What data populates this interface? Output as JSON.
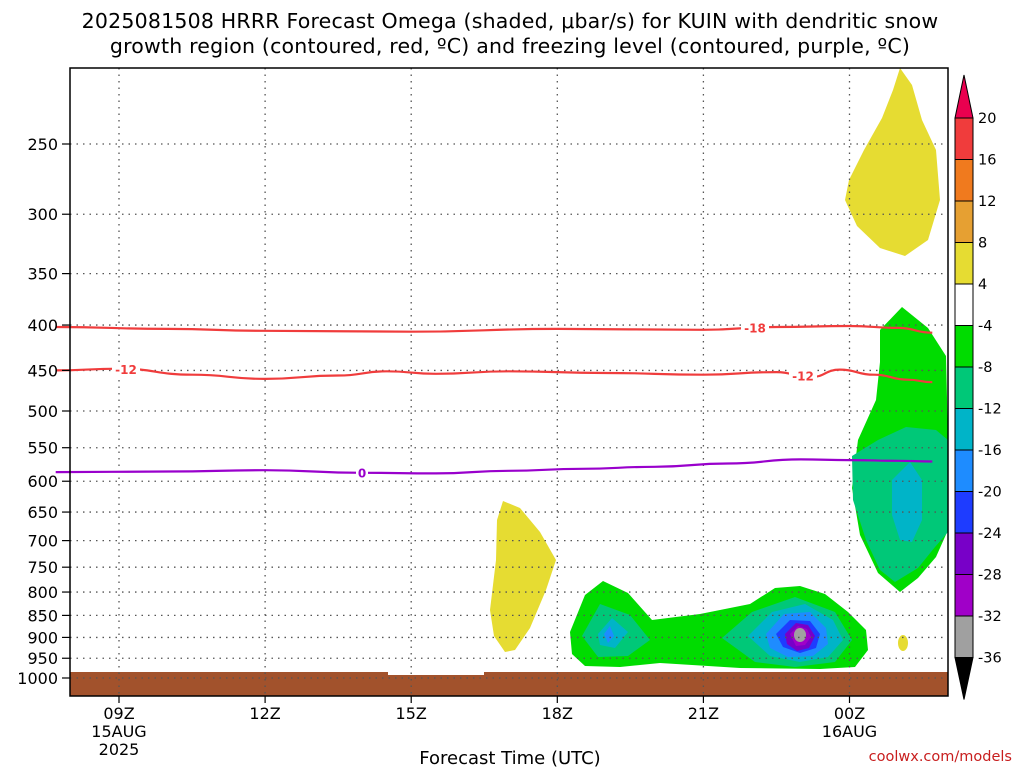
{
  "title": {
    "line1": "2025081508 HRRR Forecast Omega (shaded, μbar/s) for KUIN with dendritic snow",
    "line2": "growth region (contoured, red, ºC) and freezing level (contoured, purple, ºC)"
  },
  "credit": "coolwx.com/models",
  "chart_data": {
    "type": "time-height cross section",
    "xlabel": "Forecast Time (UTC)",
    "x_range_hours": [
      7.7,
      25.7
    ],
    "x_ticks": [
      {
        "hour": 9,
        "label": "09Z",
        "sub1": "15AUG",
        "sub2": "2025"
      },
      {
        "hour": 12,
        "label": "12Z",
        "sub1": "",
        "sub2": ""
      },
      {
        "hour": 15,
        "label": "15Z",
        "sub1": "",
        "sub2": ""
      },
      {
        "hour": 18,
        "label": "18Z",
        "sub1": "",
        "sub2": ""
      },
      {
        "hour": 21,
        "label": "21Z",
        "sub1": "",
        "sub2": ""
      },
      {
        "hour": 24,
        "label": "00Z",
        "sub1": "16AUG",
        "sub2": ""
      }
    ],
    "y_scale": "log pressure (mb), inverted",
    "y_range_mb": [
      1030,
      200
    ],
    "y_ticks": [
      250,
      300,
      350,
      400,
      450,
      500,
      550,
      600,
      650,
      700,
      750,
      800,
      850,
      900,
      950,
      1000
    ],
    "grid": true,
    "colorbar": {
      "levels": [
        20,
        16,
        12,
        8,
        4,
        -4,
        -8,
        -12,
        -16,
        -20,
        -24,
        -28,
        -32,
        -36
      ],
      "colors": [
        "#e9004f",
        "#f03c3c",
        "#f07a1e",
        "#e6a032",
        "#e6dc32",
        "#ffffff",
        "#00dc00",
        "#00c878",
        "#00b4c8",
        "#1e8cff",
        "#1e3cff",
        "#7800c8",
        "#a000c8",
        "#a0a0a0",
        "#000000"
      ]
    },
    "contours": [
      {
        "label": "-18",
        "color": "#f03c3c",
        "points": [
          [
            7.7,
            402
          ],
          [
            10,
            404
          ],
          [
            12,
            406
          ],
          [
            15,
            407
          ],
          [
            18,
            404
          ],
          [
            21,
            405
          ],
          [
            22.5,
            402
          ],
          [
            24,
            401
          ],
          [
            25,
            403
          ],
          [
            25.7,
            408
          ]
        ]
      },
      {
        "label": "-12",
        "color": "#f03c3c",
        "points": [
          [
            7.7,
            450
          ],
          [
            9,
            448
          ],
          [
            10.5,
            455
          ],
          [
            12,
            460
          ],
          [
            13.5,
            456
          ],
          [
            14.5,
            451
          ],
          [
            15.5,
            454
          ],
          [
            17,
            451
          ],
          [
            19,
            453
          ],
          [
            21,
            455
          ],
          [
            22.5,
            452
          ],
          [
            23.2,
            458
          ],
          [
            23.8,
            449
          ],
          [
            24.5,
            455
          ],
          [
            25.2,
            461
          ],
          [
            25.7,
            464
          ]
        ]
      },
      {
        "label": "0",
        "color": "#9900cc",
        "points": [
          [
            7.7,
            586
          ],
          [
            10,
            585
          ],
          [
            12,
            583
          ],
          [
            14,
            587
          ],
          [
            15.5,
            588
          ],
          [
            17,
            584
          ],
          [
            18.5,
            581
          ],
          [
            20,
            578
          ],
          [
            21.5,
            573
          ],
          [
            23,
            567
          ],
          [
            24,
            568
          ],
          [
            25,
            569
          ],
          [
            25.7,
            570
          ]
        ]
      }
    ],
    "omega_regions": [
      {
        "omega": ">4",
        "center_hour": 17.0,
        "center_mb": 780
      },
      {
        "omega": ">4",
        "center_hour": 25.0,
        "center_mb": 270
      },
      {
        "omega": "-8 to -36",
        "center_hour": 22.9,
        "center_mb": 890
      },
      {
        "omega": "-4 to -16",
        "center_hour": 25.0,
        "center_mb": 560
      }
    ]
  }
}
